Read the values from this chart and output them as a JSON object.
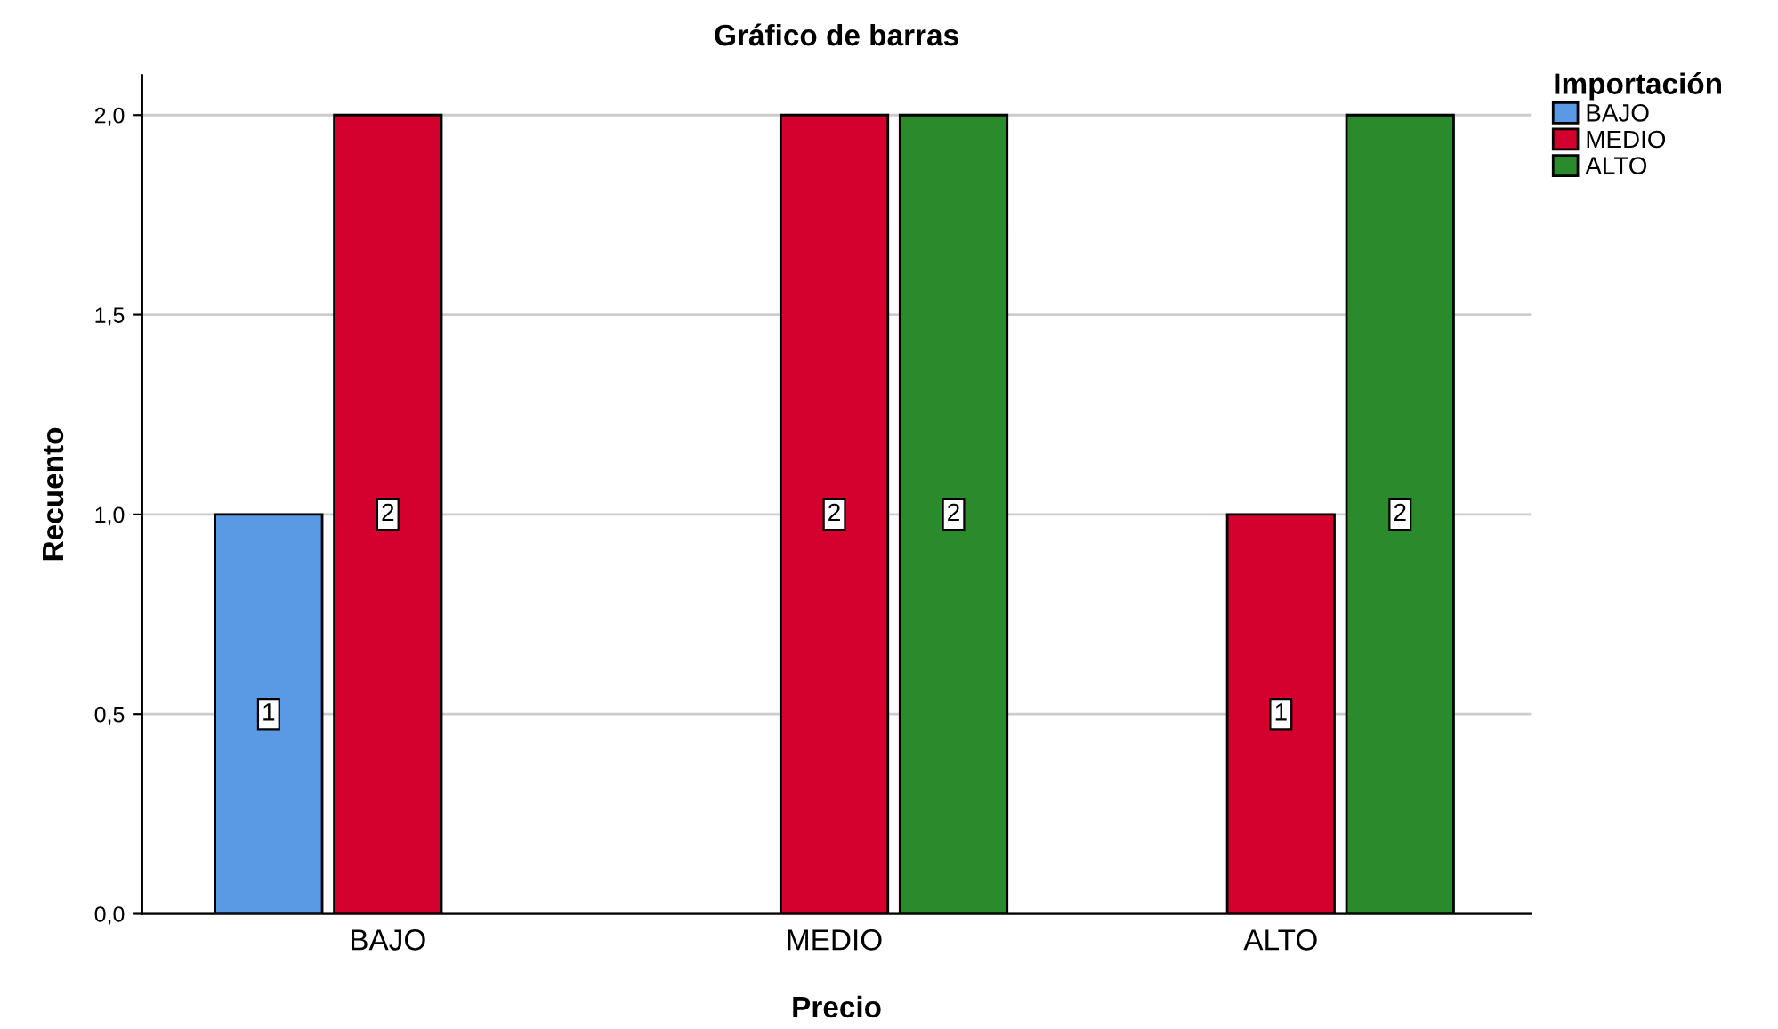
{
  "chart_data": {
    "type": "bar",
    "title": "Gráfico de barras",
    "xlabel": "Precio",
    "ylabel": "Recuento",
    "legend_title": "Importación",
    "categories": [
      "BAJO",
      "MEDIO",
      "ALTO"
    ],
    "series": [
      {
        "name": "BAJO",
        "color": "#5a9ae5",
        "values": [
          1,
          null,
          null
        ]
      },
      {
        "name": "MEDIO",
        "color": "#d4002e",
        "values": [
          2,
          2,
          1
        ]
      },
      {
        "name": "ALTO",
        "color": "#2b8a2b",
        "values": [
          null,
          2,
          2
        ]
      }
    ],
    "ylim": [
      0,
      2.1
    ],
    "yticks": [
      {
        "value": 0,
        "label": "0,0"
      },
      {
        "value": 0.5,
        "label": "0,5"
      },
      {
        "value": 1,
        "label": "1,0"
      },
      {
        "value": 1.5,
        "label": "1,5"
      },
      {
        "value": 2,
        "label": "2,0"
      }
    ],
    "grid": "y",
    "legend": "top right",
    "data_labels": true
  }
}
